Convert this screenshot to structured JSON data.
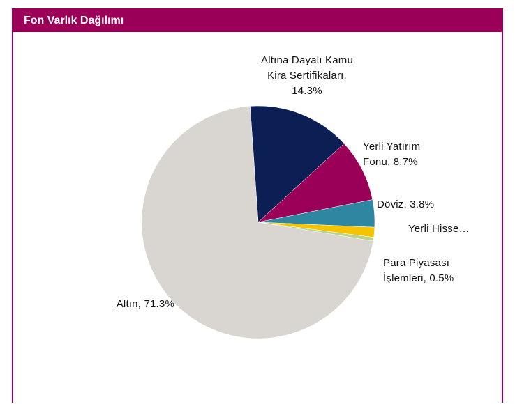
{
  "chart_data": {
    "type": "pie",
    "title": "Fon Varlık Dağılımı",
    "values": [
      14.3,
      8.7,
      3.8,
      1.4,
      0.5,
      71.3
    ],
    "value_labels": [
      "Altına Dayalı Kamu Kira Sertifikaları, 14.3%",
      "Yerli Yatırım Fonu, 8.7%",
      "Döviz, 3.8%",
      "Yerli Hisse…",
      "Para Piyasası İşlemleri, 0.5%",
      "Altın, 71.3%"
    ],
    "colors": [
      "#0c1f55",
      "#9b0058",
      "#2f86a0",
      "#f5c400",
      "#b8d48c",
      "#d9d5d0"
    ]
  }
}
